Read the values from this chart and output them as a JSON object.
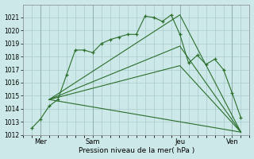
{
  "bg_color": "#cce8e8",
  "grid_color": "#aacccc",
  "line_color": "#2a6e2a",
  "xlabel": "Pression niveau de la mer( hPa )",
  "ylim": [
    1012,
    1022
  ],
  "yticks": [
    1012,
    1013,
    1014,
    1015,
    1016,
    1017,
    1018,
    1019,
    1020,
    1021
  ],
  "xlim": [
    0,
    13
  ],
  "xtick_labels": [
    "Mer",
    "Sam",
    "Jeu",
    "Ven"
  ],
  "xtick_positions": [
    1,
    4,
    9,
    12
  ],
  "vlines": [
    1,
    4,
    9,
    12
  ],
  "series0_x": [
    0.5,
    1.0,
    1.5,
    2.0,
    2.5,
    3.0,
    3.5,
    4.0,
    4.5,
    5.0,
    5.5,
    6.0,
    6.5,
    7.0,
    7.5,
    8.0,
    8.5,
    9.0,
    9.5,
    10.0,
    10.5,
    11.0,
    11.5,
    12.0,
    12.5
  ],
  "series0_y": [
    1012.5,
    1013.2,
    1014.2,
    1014.7,
    1016.6,
    1018.5,
    1018.5,
    1018.3,
    1019.0,
    1019.3,
    1019.5,
    1019.7,
    1019.7,
    1021.1,
    1021.0,
    1020.7,
    1021.2,
    1019.7,
    1017.5,
    1018.1,
    1017.4,
    1017.8,
    1017.0,
    1015.2,
    1013.3
  ],
  "line1_x": [
    1.5,
    9.0,
    12.5
  ],
  "line1_y": [
    1014.7,
    1021.2,
    1012.2
  ],
  "line2_x": [
    1.5,
    9.0,
    12.5
  ],
  "line2_y": [
    1014.7,
    1018.8,
    1012.2
  ],
  "line3_x": [
    1.5,
    9.0,
    12.5
  ],
  "line3_y": [
    1014.7,
    1017.3,
    1012.2
  ],
  "line4_x": [
    1.5,
    12.5
  ],
  "line4_y": [
    1014.7,
    1012.2
  ]
}
